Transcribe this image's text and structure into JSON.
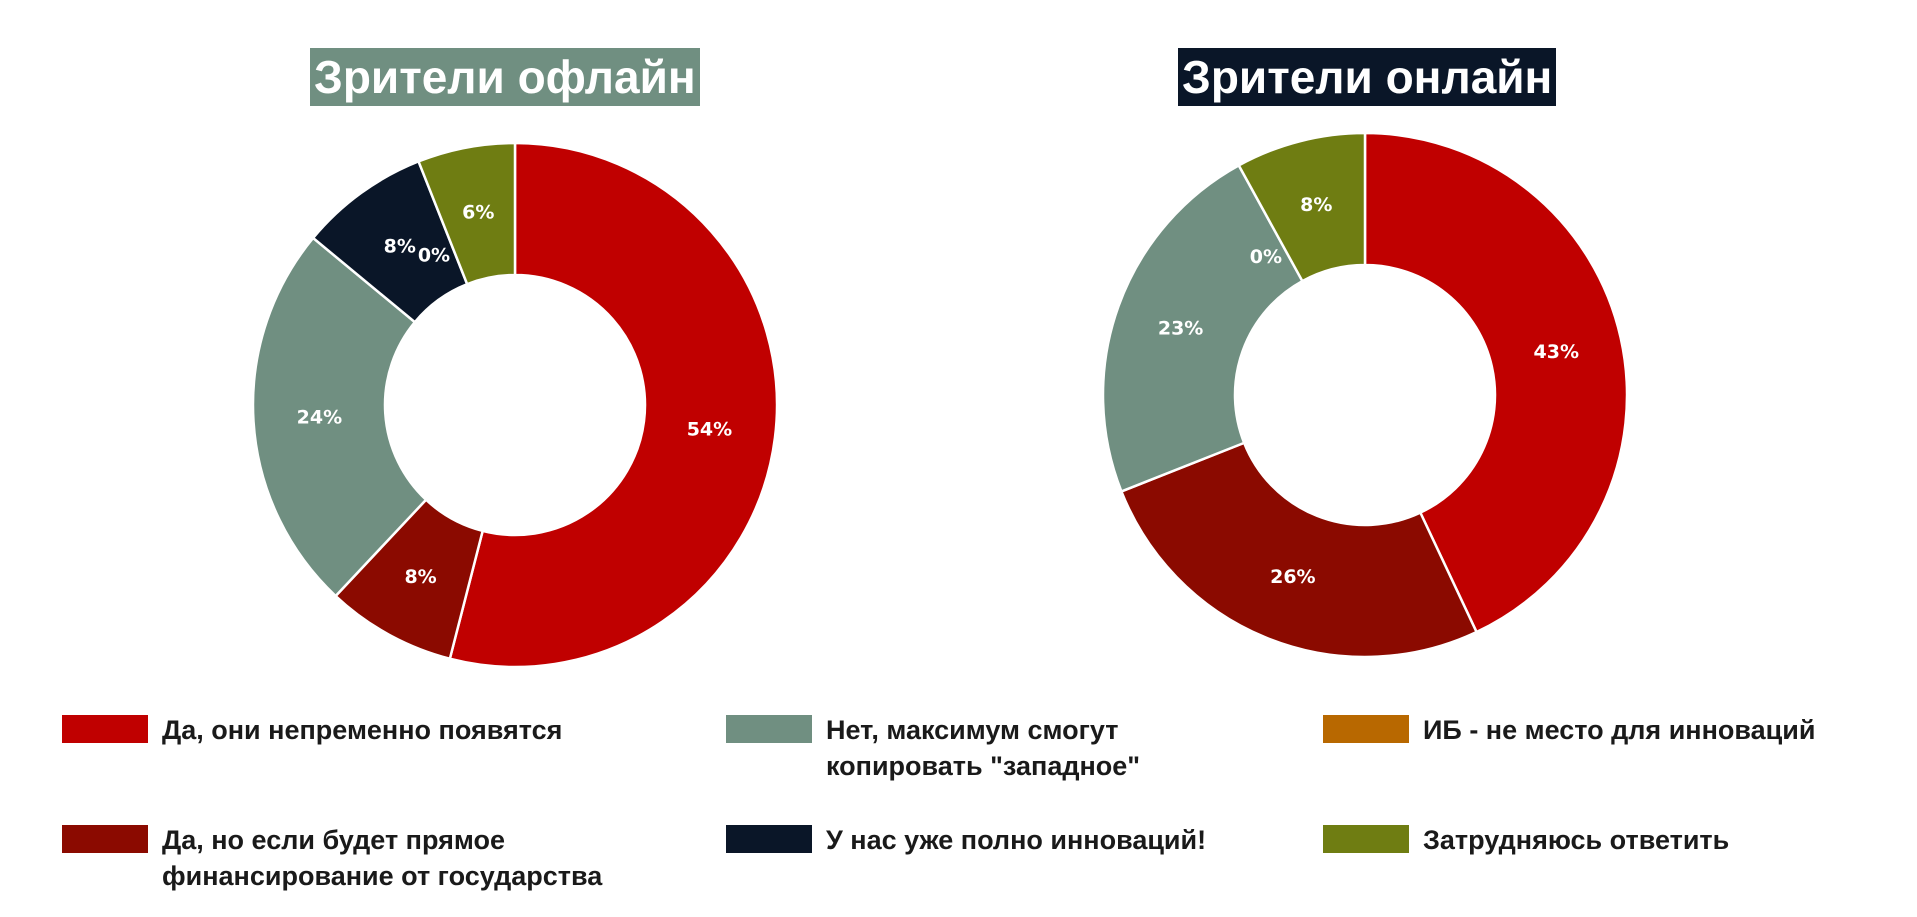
{
  "chart_data": [
    {
      "type": "pie",
      "title": "Зрители офлайн",
      "title_bg": "#708f81",
      "slices": [
        {
          "category_index": 0,
          "value": 54,
          "label": "54%"
        },
        {
          "category_index": 1,
          "value": 8,
          "label": "8%"
        },
        {
          "category_index": 2,
          "value": 24,
          "label": "24%"
        },
        {
          "category_index": 3,
          "value": 8,
          "label": "8%"
        },
        {
          "category_index": 4,
          "value": 0,
          "label": "0%"
        },
        {
          "category_index": 5,
          "value": 6,
          "label": "6%"
        }
      ]
    },
    {
      "type": "pie",
      "title": "Зрители онлайн",
      "title_bg": "#0a1628",
      "slices": [
        {
          "category_index": 0,
          "value": 43,
          "label": "43%"
        },
        {
          "category_index": 1,
          "value": 26,
          "label": "26%"
        },
        {
          "category_index": 2,
          "value": 23,
          "label": "23%"
        },
        {
          "category_index": 3,
          "value": 0,
          "label": ""
        },
        {
          "category_index": 4,
          "value": 0,
          "label": "0%"
        },
        {
          "category_index": 5,
          "value": 8,
          "label": "8%"
        }
      ]
    }
  ],
  "legend": [
    {
      "label": "Да, они непременно появятся",
      "color": "#c00000"
    },
    {
      "label": "Да, но если будет прямое\nфинансирование  от государства",
      "color": "#8b0a00"
    },
    {
      "label": "Нет, максимум смогут\nкопировать \"западное\"",
      "color": "#708f81"
    },
    {
      "label": "У нас уже полно инноваций!",
      "color": "#0a1628"
    },
    {
      "label": "ИБ - не место для инноваций",
      "color": "#b86800"
    },
    {
      "label": "Затрудняюсь ответить",
      "color": "#6f7d12"
    }
  ]
}
